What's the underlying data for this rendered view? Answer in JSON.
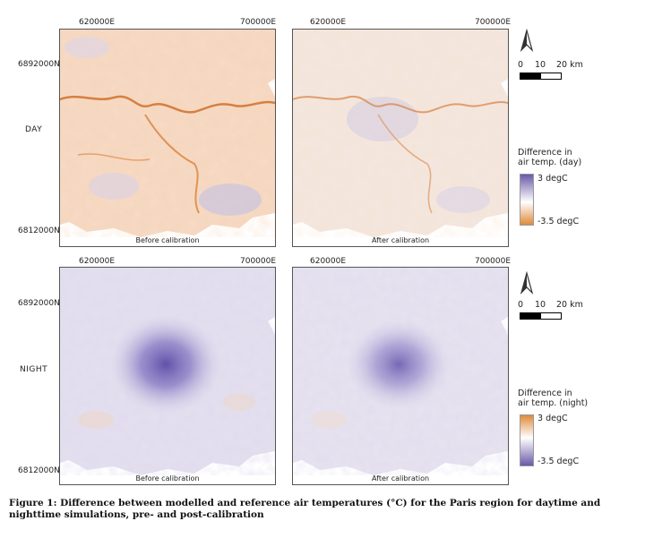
{
  "coord_labels": {
    "east_left": "620000E",
    "east_right": "700000E",
    "north_top": "6892000N",
    "north_bottom": "6812000N"
  },
  "rows": [
    {
      "label": "DAY",
      "panels": [
        {
          "caption": "Before calibration"
        },
        {
          "caption": "After calibration"
        }
      ],
      "legend": {
        "title_line1": "Difference in",
        "title_line2": "air temp. (day)",
        "max_label": "3 degC",
        "min_label": "-3.5 degC",
        "top_color": "#6a5aa8",
        "bottom_color": "#e08a3c"
      }
    },
    {
      "label": "NIGHT",
      "panels": [
        {
          "caption": "Before calibration"
        },
        {
          "caption": "After calibration"
        }
      ],
      "legend": {
        "title_line1": "Difference in",
        "title_line2": "air temp. (night)",
        "max_label": "3 degC",
        "min_label": "-3.5 degC",
        "top_color": "#e08a3c",
        "bottom_color": "#6a5aa8"
      }
    }
  ],
  "scale_bar": {
    "labels": [
      "0",
      "10",
      "20 km"
    ]
  },
  "north_arrow": {
    "icon": "north-arrow-icon"
  },
  "figure_caption": "Figure 1: Difference between modelled and reference air temperatures (°C) for the Paris region for daytime and nighttime simulations, pre- and post-calibration"
}
